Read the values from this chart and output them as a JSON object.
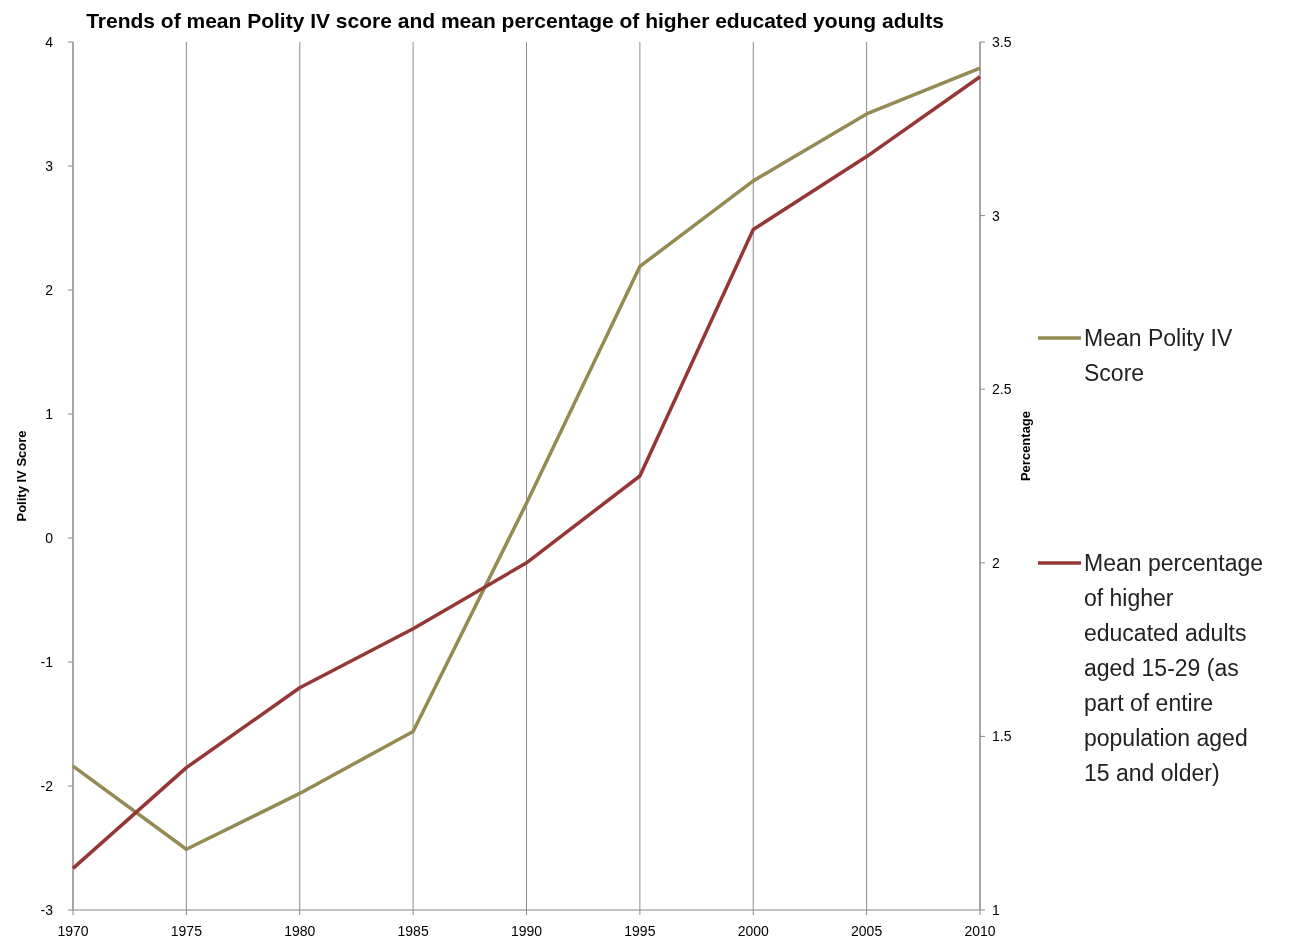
{
  "chart_data": {
    "type": "line",
    "title": "Trends of mean Polity IV score and mean percentage of higher educated young adults",
    "ylabel": "Polity IV Score",
    "y2label": "Percentage",
    "x": [
      1970,
      1975,
      1980,
      1985,
      1990,
      1995,
      2000,
      2005,
      2010
    ],
    "xlim": [
      1970,
      2010
    ],
    "xticks": [
      1970,
      1975,
      1980,
      1985,
      1990,
      1995,
      2000,
      2005,
      2010
    ],
    "ylim": [
      -3,
      4
    ],
    "yticks": [
      -3,
      -2,
      -1,
      0,
      1,
      2,
      3,
      4
    ],
    "y2lim": [
      1,
      3.5
    ],
    "y2ticks": [
      1,
      1.5,
      2,
      2.5,
      3,
      3.5
    ],
    "grid": "x",
    "legend": "right",
    "series": [
      {
        "name": "Mean Polity IV Score",
        "color": "#948a54",
        "values": [
          -1.84,
          -2.51,
          -2.06,
          -1.56,
          0.28,
          2.19,
          2.88,
          3.42,
          3.79
        ]
      },
      {
        "name": "Mean percentage of higher educated adults aged 15-29 (as part of entire population aged 15 and older)",
        "color": "#953735",
        "axis": "y2",
        "values": [
          1.12,
          1.41,
          1.64,
          1.81,
          2.0,
          2.25,
          2.96,
          3.17,
          3.4
        ]
      }
    ]
  }
}
